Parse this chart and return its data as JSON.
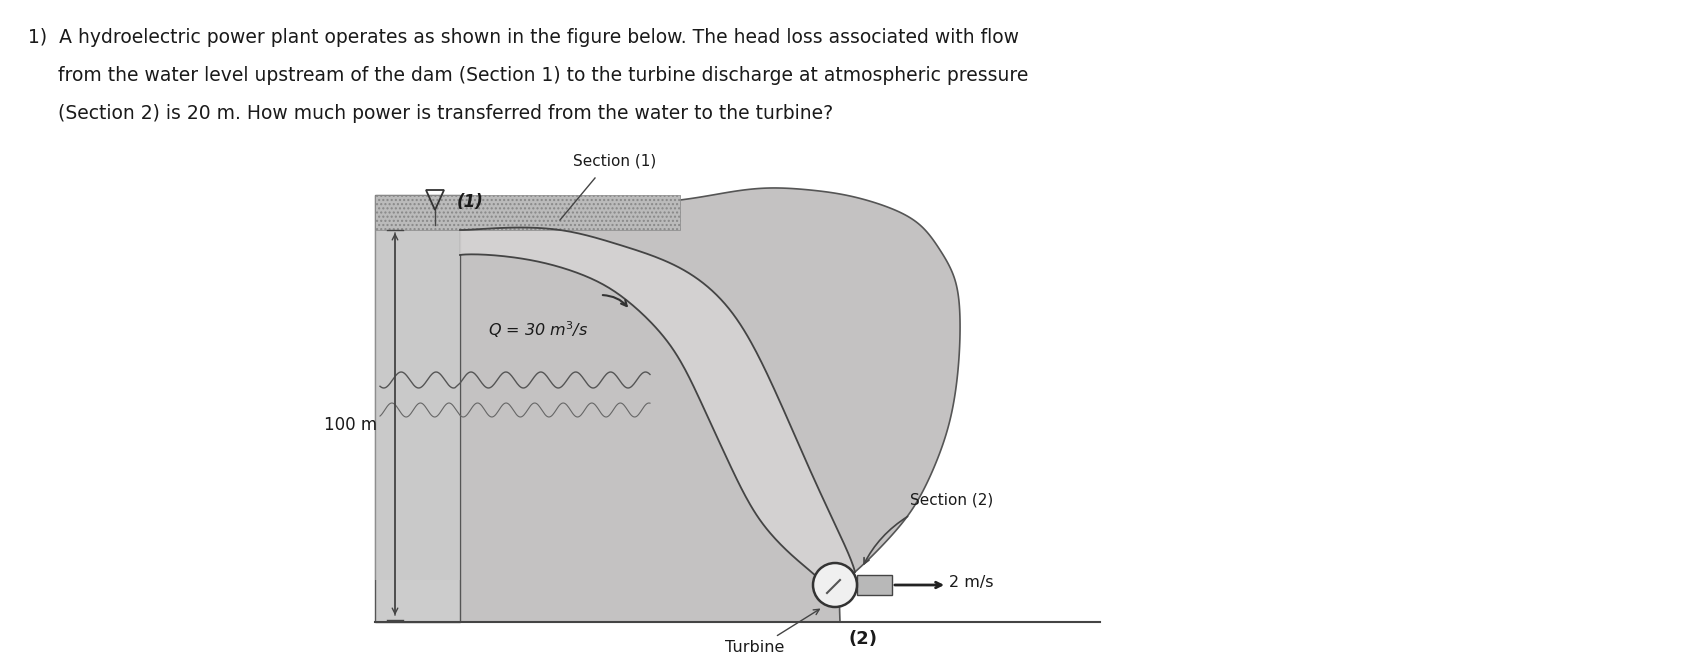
{
  "background_color": "#ffffff",
  "fig_width": 16.94,
  "fig_height": 6.54,
  "section1_label": "Section (1)",
  "section2_label": "Section (2)",
  "Q_label": "$Q$ = 30 m$^3$/s",
  "height_label": "100 m",
  "velocity_label": "2 m/s",
  "turbine_label": "Turbine",
  "section2_num": "(2)",
  "text_color": "#1a1a1a",
  "dam_color": "#c8c8c8",
  "hill_color": "#c0bebe",
  "hill_edge": "#555555",
  "water_hatch_color": "#aaaaaa",
  "channel_light": "#d0d0d0",
  "channel_dark": "#909090"
}
